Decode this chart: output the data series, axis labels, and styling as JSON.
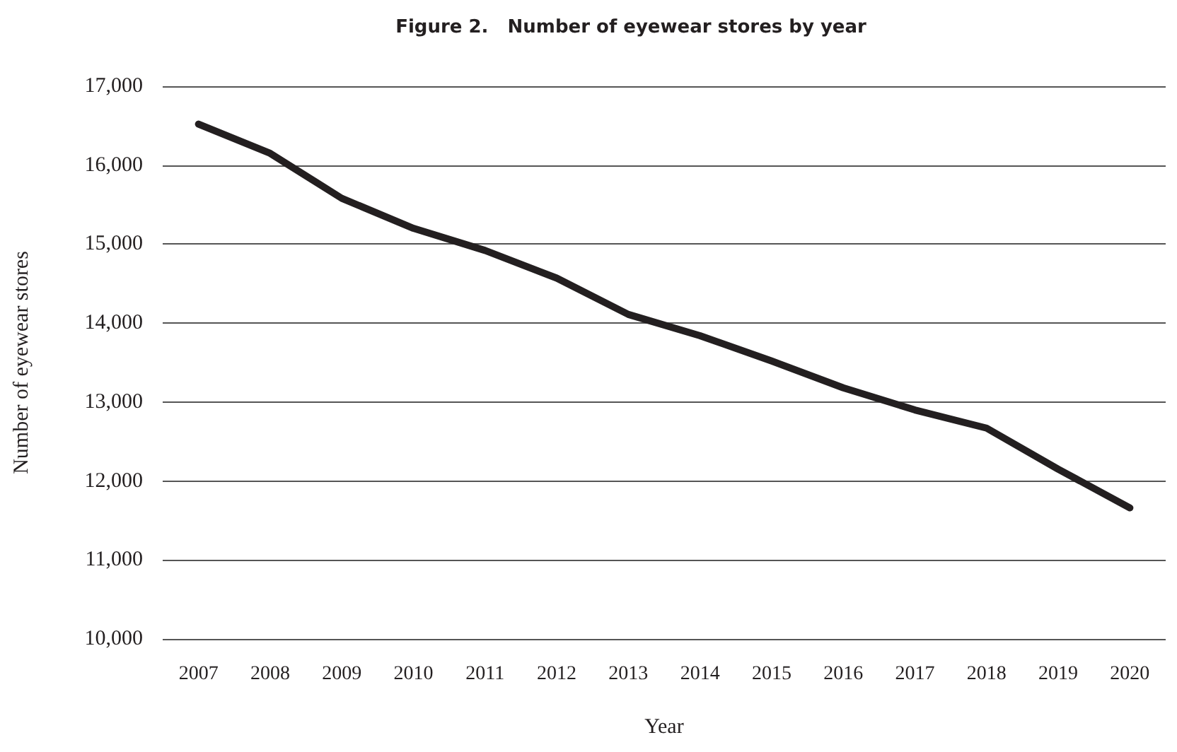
{
  "chart_data": {
    "type": "line",
    "title": "Figure 2.   Number of eyewear stores by year",
    "xlabel": "Year",
    "ylabel": "Number of eyewear stores",
    "categories": [
      "2007",
      "2008",
      "2009",
      "2010",
      "2011",
      "2012",
      "2013",
      "2014",
      "2015",
      "2016",
      "2017",
      "2018",
      "2019",
      "2020"
    ],
    "series": [
      {
        "color": "#231f20",
        "values": [
          16520,
          16150,
          15580,
          15200,
          14920,
          14570,
          14110,
          13840,
          13520,
          13180,
          12900,
          12670,
          12150,
          11660
        ]
      }
    ],
    "ylim": [
      10000,
      17000
    ],
    "yticks": [
      {
        "value": 10000,
        "label": "10,000"
      },
      {
        "value": 11000,
        "label": "11,000"
      },
      {
        "value": 12000,
        "label": "12,000"
      },
      {
        "value": 13000,
        "label": "13,000"
      },
      {
        "value": 14000,
        "label": "14,000"
      },
      {
        "value": 15000,
        "label": "15,000"
      },
      {
        "value": 16000,
        "label": "16,000"
      },
      {
        "value": 17000,
        "label": "17,000"
      }
    ],
    "grid": "y",
    "marker": "none",
    "line_style": "solid"
  }
}
